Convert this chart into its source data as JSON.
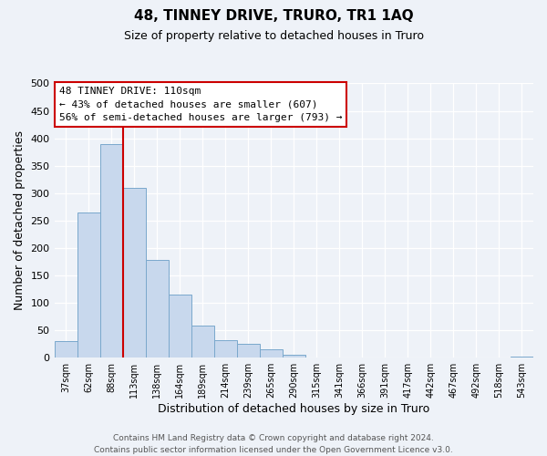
{
  "title": "48, TINNEY DRIVE, TRURO, TR1 1AQ",
  "subtitle": "Size of property relative to detached houses in Truro",
  "xlabel": "Distribution of detached houses by size in Truro",
  "ylabel": "Number of detached properties",
  "bar_labels": [
    "37sqm",
    "62sqm",
    "88sqm",
    "113sqm",
    "138sqm",
    "164sqm",
    "189sqm",
    "214sqm",
    "239sqm",
    "265sqm",
    "290sqm",
    "315sqm",
    "341sqm",
    "366sqm",
    "391sqm",
    "417sqm",
    "442sqm",
    "467sqm",
    "492sqm",
    "518sqm",
    "543sqm"
  ],
  "bar_values": [
    30,
    265,
    390,
    310,
    178,
    115,
    58,
    32,
    26,
    15,
    6,
    0,
    0,
    0,
    0,
    0,
    0,
    0,
    0,
    0,
    2
  ],
  "bar_color": "#c8d8ed",
  "bar_edge_color": "#7aa8cc",
  "vline_color": "#cc0000",
  "vline_x": 2.5,
  "annotation_title": "48 TINNEY DRIVE: 110sqm",
  "annotation_line1": "← 43% of detached houses are smaller (607)",
  "annotation_line2": "56% of semi-detached houses are larger (793) →",
  "annotation_box_facecolor": "#ffffff",
  "annotation_box_edgecolor": "#cc0000",
  "ylim": [
    0,
    500
  ],
  "yticks": [
    0,
    50,
    100,
    150,
    200,
    250,
    300,
    350,
    400,
    450,
    500
  ],
  "footnote1": "Contains HM Land Registry data © Crown copyright and database right 2024.",
  "footnote2": "Contains public sector information licensed under the Open Government Licence v3.0.",
  "bg_color": "#eef2f8",
  "plot_bg_color": "#eef2f8",
  "grid_color": "#ffffff",
  "title_fontsize": 11,
  "subtitle_fontsize": 9,
  "ylabel_fontsize": 9,
  "xlabel_fontsize": 9,
  "ytick_fontsize": 8,
  "xtick_fontsize": 7,
  "annot_fontsize": 8,
  "footnote_fontsize": 6.5
}
